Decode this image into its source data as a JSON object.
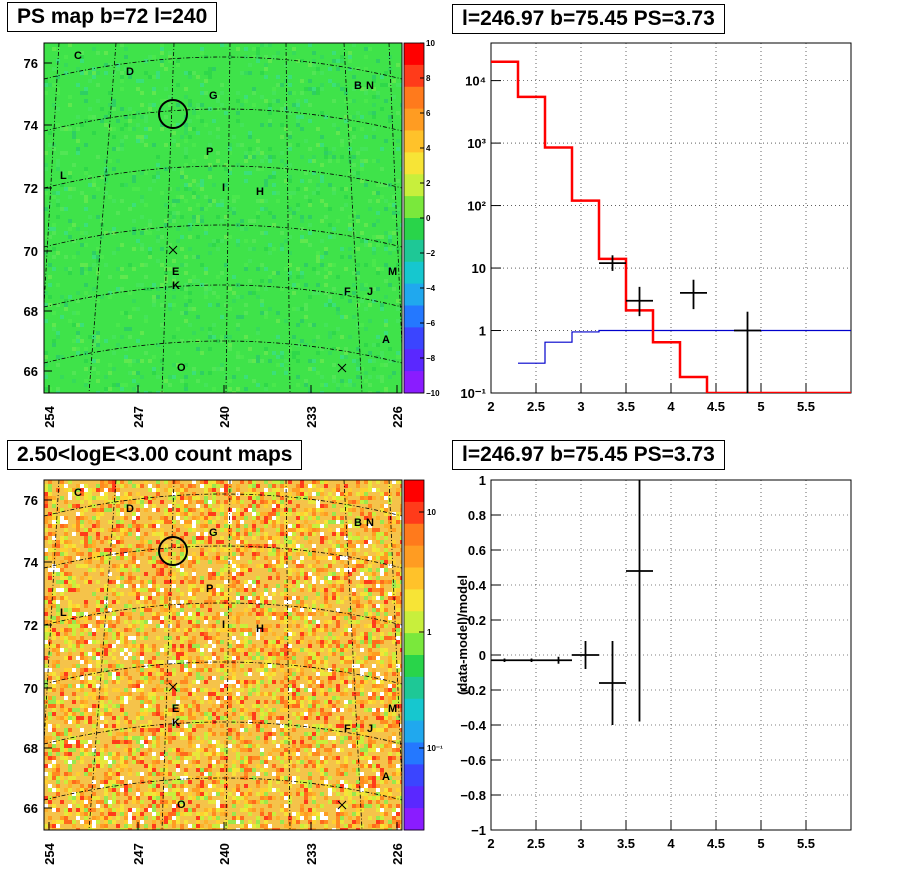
{
  "panels": {
    "tl_title": "PS map b=72 l=240",
    "tr_title": "l=246.97 b=75.45 PS=3.73",
    "bl_title": "2.50<logE<3.00 count maps",
    "br_title": "l=246.97 b=75.45 PS=3.73"
  },
  "colors": {
    "ps_background": "#3fe34a",
    "count_background": "#f5c34a",
    "model_red": "#ff0000",
    "model_blue": "#0000cc",
    "data_black": "#000000"
  },
  "maps": {
    "x_ticks": [
      "254",
      "247",
      "240",
      "233",
      "226"
    ],
    "y_ticks": [
      "76",
      "74",
      "72",
      "70",
      "68",
      "66"
    ],
    "sources": [
      "C",
      "D",
      "G",
      "B",
      "N",
      "P",
      "L",
      "I",
      "H",
      "E",
      "K",
      "M",
      "F",
      "J",
      "A",
      "O"
    ],
    "ps_colorbar": {
      "labels": [
        "10",
        "8",
        "6",
        "4",
        "2",
        "0",
        "−2",
        "−4",
        "−6",
        "−8",
        "−10"
      ],
      "colors": [
        "#ff0000",
        "#ff3b1a",
        "#ff7a1c",
        "#ff9c22",
        "#ffc22a",
        "#f7e436",
        "#c8ef3c",
        "#7ae83c",
        "#29d44a",
        "#1ec896",
        "#16c7cf",
        "#20a8ee",
        "#2478ff",
        "#3b45ff",
        "#5a28ff",
        "#8a1cff"
      ]
    },
    "count_colorbar": {
      "labels": [
        "10",
        "1",
        "10⁻¹"
      ],
      "colors": [
        "#ff0000",
        "#ff3b1a",
        "#ff7a1c",
        "#ff9c22",
        "#ffc22a",
        "#f7e436",
        "#c8ef3c",
        "#7ae83c",
        "#29d44a",
        "#1ec896",
        "#16c7cf",
        "#20a8ee",
        "#2478ff",
        "#3b45ff",
        "#5a28ff",
        "#8a1cff"
      ]
    }
  },
  "chart_data": [
    {
      "type": "line",
      "title": "l=246.97 b=75.45 PS=3.73",
      "xlabel": "",
      "ylabel": "",
      "xlim": [
        2,
        6
      ],
      "ylim": [
        0.1,
        40000
      ],
      "yscale": "log",
      "x_ticks": [
        "2",
        "2.5",
        "3",
        "3.5",
        "4",
        "4.5",
        "5",
        "5.5"
      ],
      "y_ticks": [
        "10⁻¹",
        "1",
        "10",
        "10²",
        "10³",
        "10⁴"
      ],
      "grid": true,
      "series": [
        {
          "type": "step",
          "x": [
            2.0,
            2.3,
            2.6,
            2.9,
            3.2,
            3.5,
            3.8,
            4.1,
            4.4,
            4.7,
            5.0
          ],
          "values": [
            20000,
            5500,
            850,
            120,
            14,
            2.1,
            0.65,
            0.18,
            0.1,
            0.1,
            0.1
          ]
        },
        {
          "type": "step",
          "x": [
            2.3,
            2.6,
            2.9,
            3.2,
            3.5,
            3.8,
            4.1,
            4.4,
            4.7,
            5.0
          ],
          "values": [
            0.3,
            0.65,
            0.95,
            1.0,
            1.0,
            1.0,
            1.0,
            1.0,
            1.0,
            1.0
          ]
        },
        {
          "type": "errorbar",
          "x": [
            3.35,
            3.65,
            4.25,
            4.85
          ],
          "values": [
            12,
            3,
            4,
            1
          ],
          "xerr": [
            0.15,
            0.15,
            0.15,
            0.15
          ],
          "yerr_low": [
            3,
            1.3,
            1.8,
            0.9
          ],
          "yerr_high": [
            4,
            2,
            2.5,
            1
          ]
        }
      ]
    },
    {
      "type": "scatter",
      "title": "l=246.97 b=75.45 PS=3.73",
      "xlabel": "",
      "ylabel": "(data-model)/model",
      "xlim": [
        2,
        6
      ],
      "ylim": [
        -1,
        1
      ],
      "x_ticks": [
        "2",
        "2.5",
        "3",
        "3.5",
        "4",
        "4.5",
        "5",
        "5.5"
      ],
      "y_ticks": [
        "−1",
        "−0.8",
        "−0.6",
        "−0.4",
        "−0.2",
        "0",
        "0.2",
        "0.4",
        "0.6",
        "0.8",
        "1"
      ],
      "grid": true,
      "series": [
        {
          "type": "errorbar",
          "x": [
            2.15,
            2.45,
            2.75,
            3.05,
            3.35,
            3.65
          ],
          "values": [
            -0.03,
            -0.03,
            -0.03,
            0.0,
            -0.16,
            0.48
          ],
          "xerr": [
            0.15,
            0.15,
            0.15,
            0.15,
            0.15,
            0.15
          ],
          "yerr": [
            0.01,
            0.01,
            0.02,
            0.08,
            0.24,
            0.86
          ]
        }
      ]
    }
  ]
}
